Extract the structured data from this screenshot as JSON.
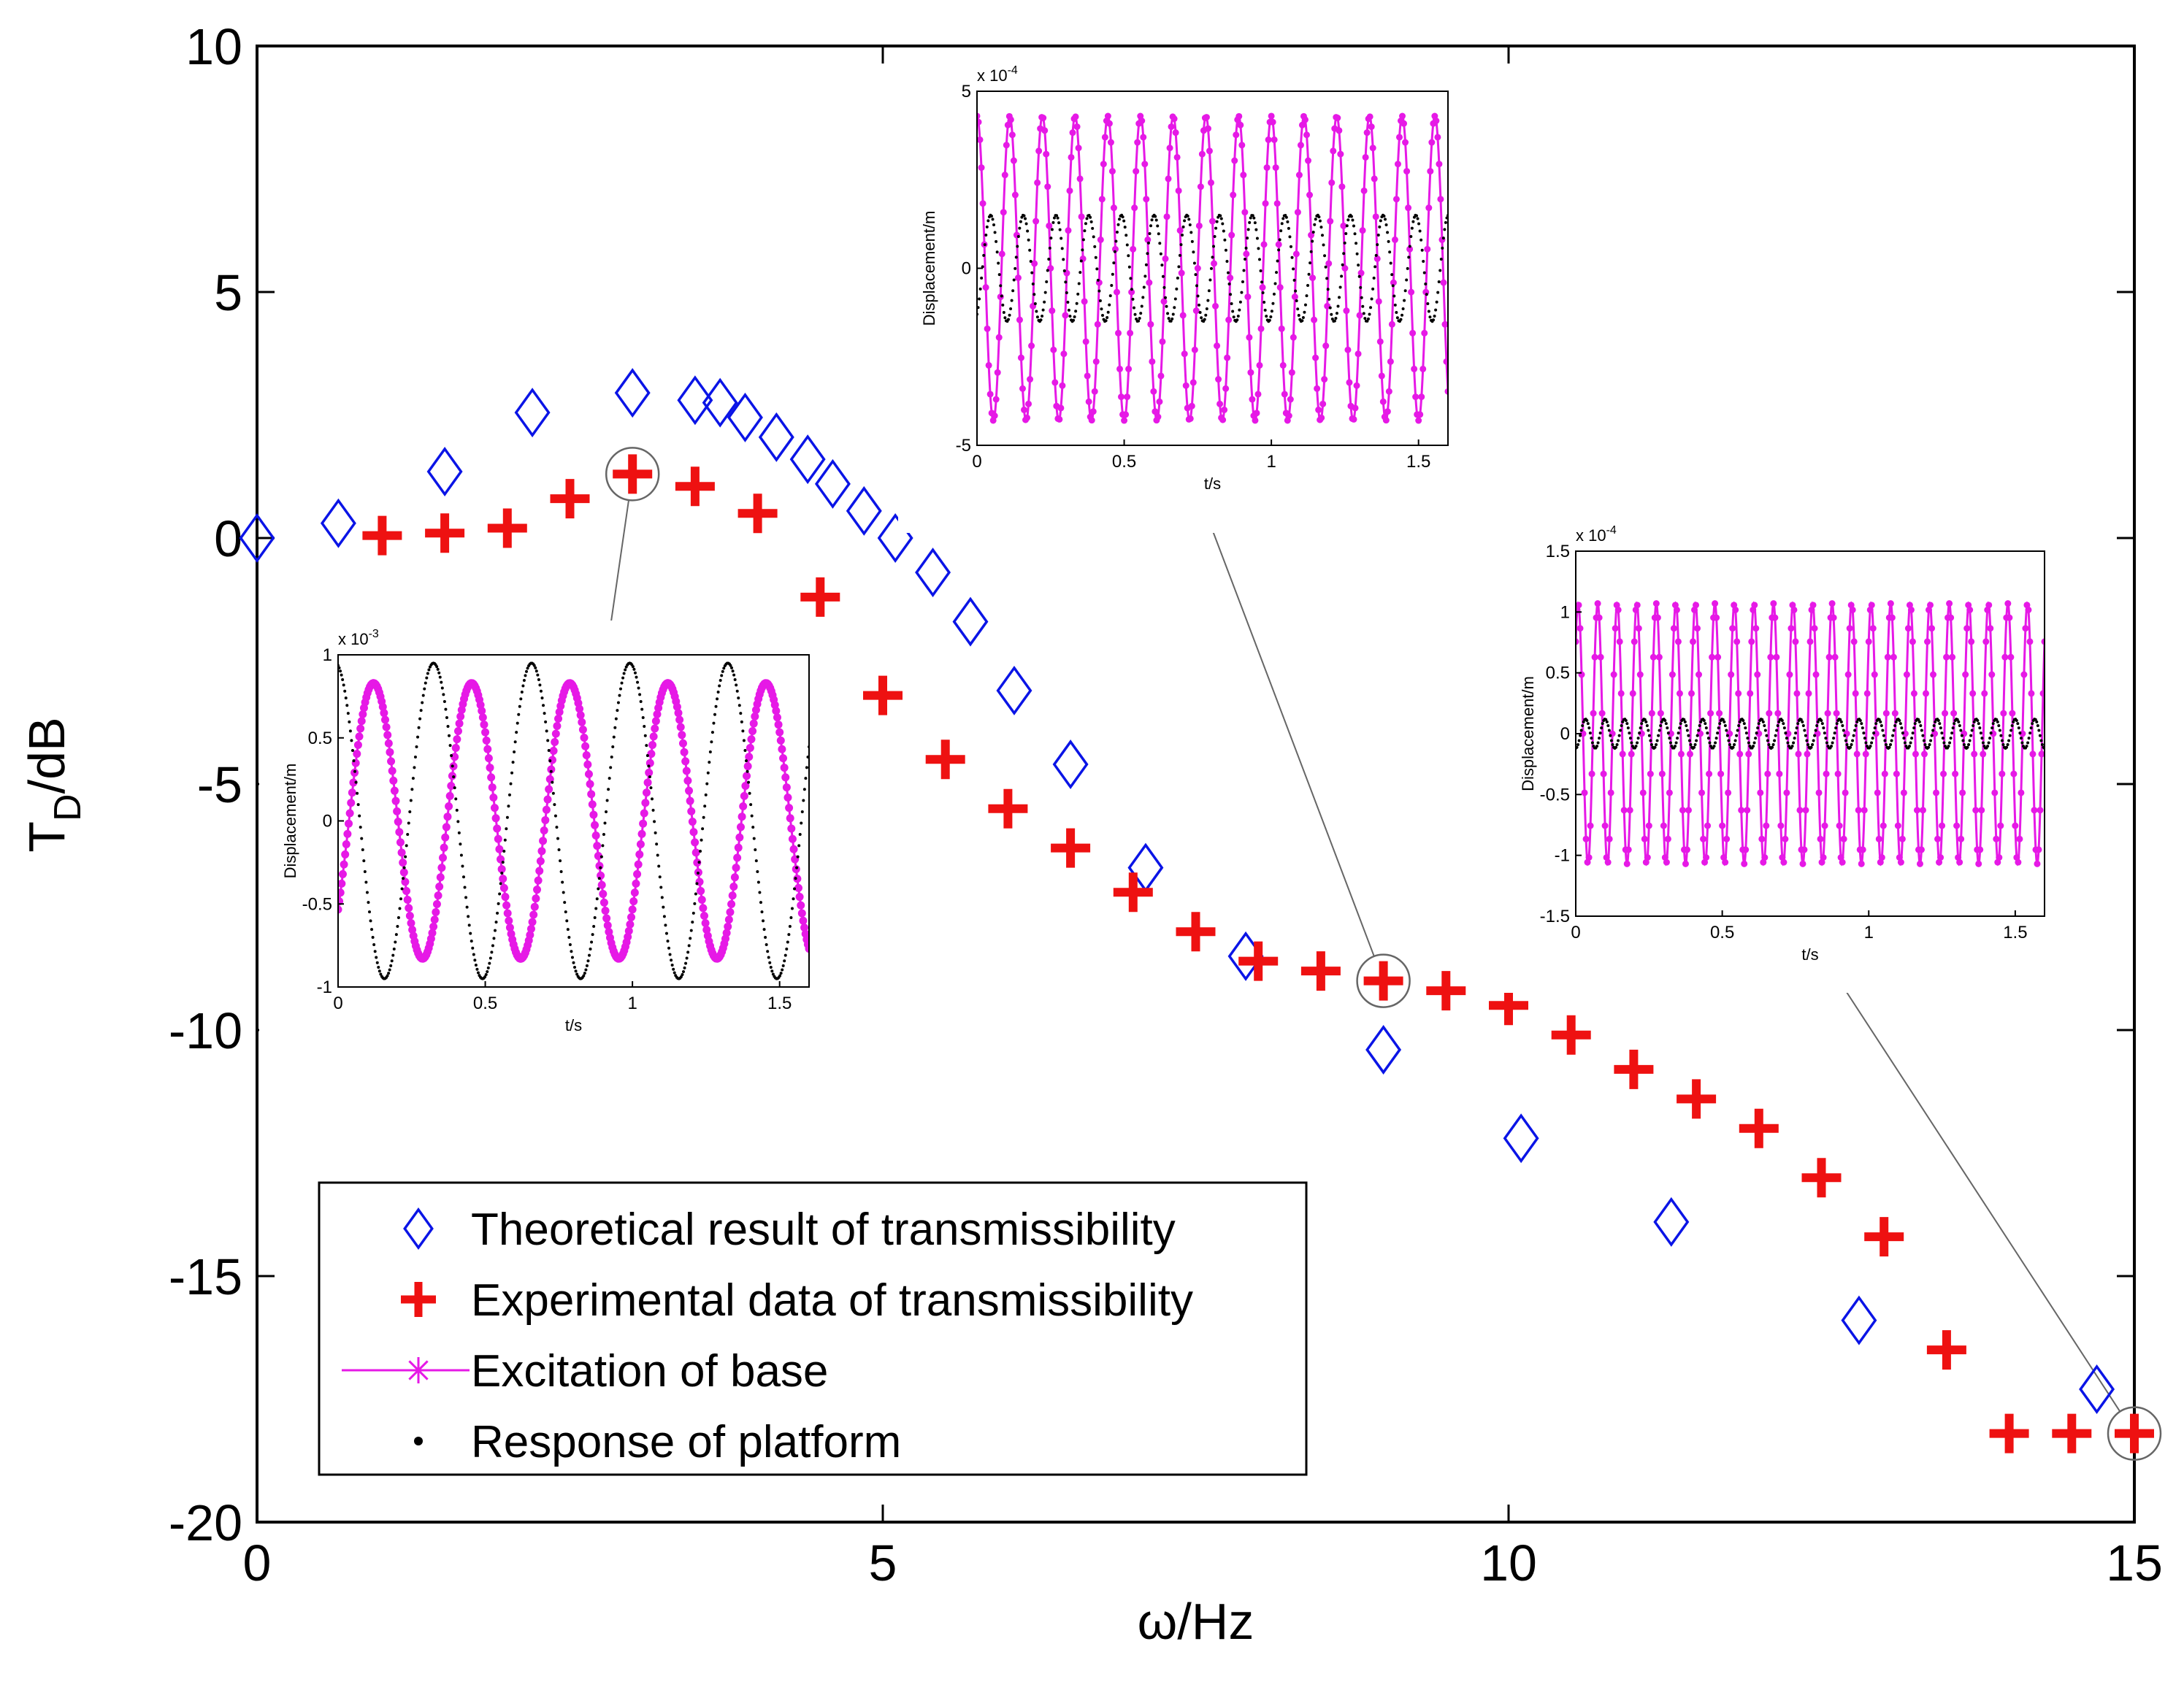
{
  "chart_data": [
    {
      "type": "scatter",
      "title": "",
      "xlabel": "ω/Hz",
      "ylabel_main": "T",
      "ylabel_sub": "D",
      "ylabel_rest": "/dB",
      "xlim": [
        0,
        15
      ],
      "ylim": [
        -20,
        10
      ],
      "xticks": [
        "0",
        "5",
        "10",
        "15"
      ],
      "yticks": [
        "10",
        "5",
        "0",
        "-5",
        "-10",
        "-15",
        "-20"
      ],
      "grid": false,
      "legend_position": "bottom-left",
      "series": [
        {
          "name": "Theoretical result of transmissibility",
          "marker": "diamond",
          "color": "#0a14e6",
          "x": [
            0,
            0.65,
            1.5,
            2.2,
            3.0,
            3.5,
            3.7,
            3.9,
            4.15,
            4.4,
            4.6,
            4.85,
            5.1,
            5.4,
            5.7,
            6.05,
            6.5,
            7.1,
            7.9,
            9.0,
            10.1,
            11.3,
            12.8,
            14.7
          ],
          "y": [
            0,
            0.3,
            1.35,
            2.55,
            2.95,
            2.8,
            2.75,
            2.45,
            2.05,
            1.6,
            1.1,
            0.55,
            0.0,
            -0.7,
            -1.7,
            -3.1,
            -4.6,
            -6.7,
            -8.5,
            -10.4,
            -12.2,
            -13.9,
            -15.9,
            -17.3
          ]
        },
        {
          "name": "Experimental data of transmissibility",
          "marker": "plus",
          "color": "#ee1111",
          "x": [
            1.0,
            1.5,
            2.0,
            2.5,
            3.0,
            3.5,
            4.0,
            4.5,
            5.0,
            5.5,
            6.0,
            6.5,
            7.0,
            7.5,
            8.0,
            8.5,
            9.0,
            9.5,
            10.0,
            10.5,
            11.0,
            11.5,
            12.0,
            12.5,
            13.0,
            13.5,
            14.0,
            14.5,
            15.0
          ],
          "y": [
            0.05,
            0.1,
            0.2,
            0.8,
            1.3,
            1.05,
            0.5,
            -1.2,
            -3.2,
            -4.5,
            -5.5,
            -6.3,
            -7.2,
            -8.0,
            -8.6,
            -8.8,
            -9.0,
            -9.2,
            -9.5,
            -10.1,
            -10.8,
            -11.4,
            -12.0,
            -13.0,
            -14.2,
            -16.5,
            -18.2,
            -18.2,
            -18.2
          ]
        }
      ],
      "legend": [
        {
          "label": "Theoretical result of transmissibility",
          "symbol": "diamond",
          "color": "#0a14e6"
        },
        {
          "label": "Experimental data of transmissibility",
          "symbol": "plus",
          "color": "#ee1111"
        },
        {
          "label": "Excitation of base",
          "symbol": "line-star",
          "color": "#e619e6"
        },
        {
          "label": "Response of platform",
          "symbol": "dot",
          "color": "#000000"
        }
      ],
      "highlighted_points": [
        {
          "x": 3.0,
          "y": 1.3
        },
        {
          "x": 9.0,
          "y": -9.0
        },
        {
          "x": 15.0,
          "y": -18.2
        }
      ]
    },
    {
      "type": "line",
      "inset_for": {
        "x": 3.0,
        "y": 1.3
      },
      "xlabel": "t/s",
      "ylabel": "Displacement/m",
      "exponent": "x 10",
      "exponent_power": "-3",
      "xlim": [
        0,
        1.6
      ],
      "ylim": [
        -1,
        1
      ],
      "xticks": [
        "0",
        "0.5",
        "1",
        "1.5"
      ],
      "yticks": [
        "1",
        "0.5",
        "0",
        "-0.5",
        "-1"
      ],
      "series": [
        {
          "name": "Excitation of base",
          "color": "#e619e6",
          "amplitude": 0.83,
          "frequency_hz": 3.0,
          "phase_deg": -40,
          "marker": "star"
        },
        {
          "name": "Response of platform",
          "color": "#000000",
          "amplitude": 0.95,
          "frequency_hz": 3.0,
          "phase_deg": 100,
          "marker": "dot"
        }
      ]
    },
    {
      "type": "line",
      "inset_for": {
        "x": 9.0,
        "y": -9.0
      },
      "xlabel": "t/s",
      "ylabel": "Displacement/m",
      "exponent": "x 10",
      "exponent_power": "-4",
      "xlim": [
        0,
        1.6
      ],
      "ylim": [
        -5,
        5
      ],
      "xticks": [
        "0",
        "0.5",
        "1",
        "1.5"
      ],
      "yticks": [
        "5",
        "0",
        "-5"
      ],
      "series": [
        {
          "name": "Excitation of base",
          "color": "#e619e6",
          "amplitude": 4.3,
          "frequency_hz": 9.0,
          "phase_deg": 90,
          "marker": "star"
        },
        {
          "name": "Response of platform",
          "color": "#000000",
          "amplitude": 1.5,
          "frequency_hz": 9.0,
          "phase_deg": -60,
          "marker": "dot"
        }
      ]
    },
    {
      "type": "line",
      "inset_for": {
        "x": 15.0,
        "y": -18.2
      },
      "xlabel": "t/s",
      "ylabel": "Displacement/m",
      "exponent": "x 10",
      "exponent_power": "-4",
      "xlim": [
        0,
        1.6
      ],
      "ylim": [
        -1.5,
        1.5
      ],
      "xticks": [
        "0",
        "0.5",
        "1",
        "1.5"
      ],
      "yticks": [
        "1.5",
        "1",
        "0.5",
        "0",
        "-0.5",
        "-1",
        "-1.5"
      ],
      "series": [
        {
          "name": "Excitation of base",
          "color": "#e619e6",
          "amplitude": 1.07,
          "frequency_hz": 15.0,
          "phase_deg": 45,
          "marker": "star"
        },
        {
          "name": "Response of platform",
          "color": "#000000",
          "amplitude": 0.12,
          "frequency_hz": 15.0,
          "phase_deg": -90,
          "marker": "dot"
        }
      ]
    }
  ]
}
